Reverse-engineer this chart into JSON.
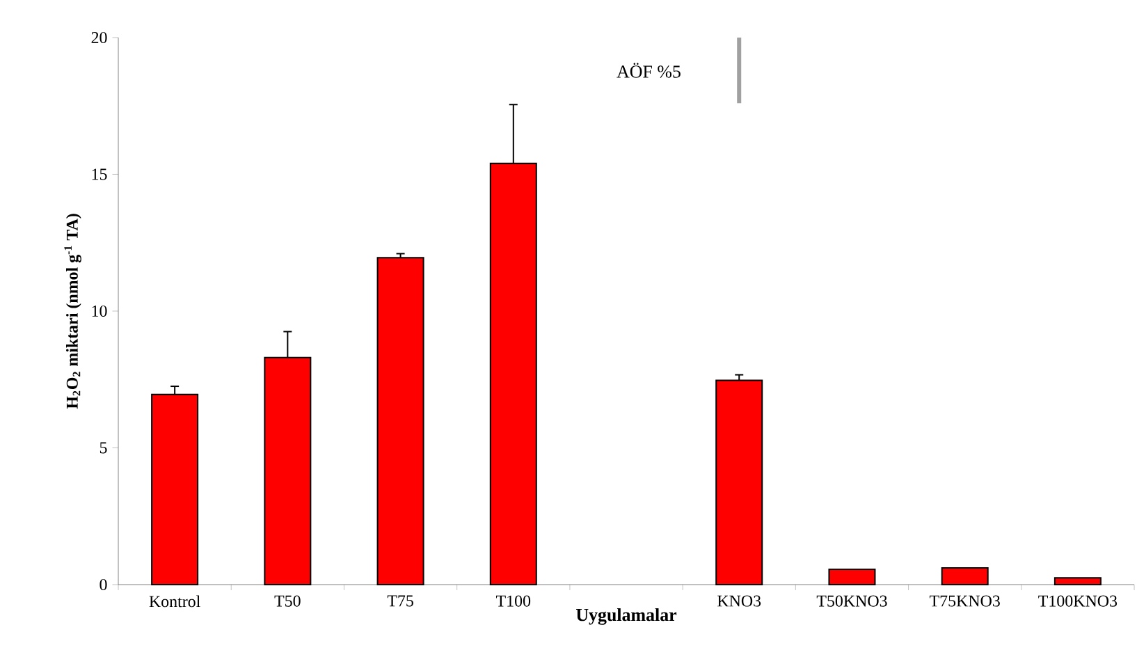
{
  "chart_data": {
    "type": "bar",
    "xlabel": "Uygulamalar",
    "ylabel": "H$_{2}$O$_{2}$ miktari (nmol g$^{-1}$ TA)",
    "categories": [
      "Kontrol",
      "T50",
      "T75",
      "T100",
      null,
      "KNO3",
      "T50KNO3",
      "T75KNO3",
      "T100KNO3"
    ],
    "series": [
      {
        "color": "#ff0000",
        "values": [
          6.95,
          8.3,
          11.95,
          15.4,
          null,
          7.47,
          0.56,
          0.61,
          0.25
        ],
        "errors": [
          0.3,
          0.95,
          0.15,
          2.15,
          null,
          0.2,
          null,
          null,
          null
        ]
      },
      {
        "color": "#a0a0a0",
        "base": [
          null,
          null,
          null,
          null,
          null,
          17.6,
          null,
          null,
          null
        ],
        "values": [
          null,
          null,
          null,
          null,
          null,
          2.4,
          null,
          null,
          null
        ]
      }
    ],
    "annotations": [
      "AÖF %5"
    ],
    "ylim": [
      0,
      20
    ],
    "yticks": [
      0,
      5,
      10,
      15,
      20
    ],
    "grid": false
  }
}
